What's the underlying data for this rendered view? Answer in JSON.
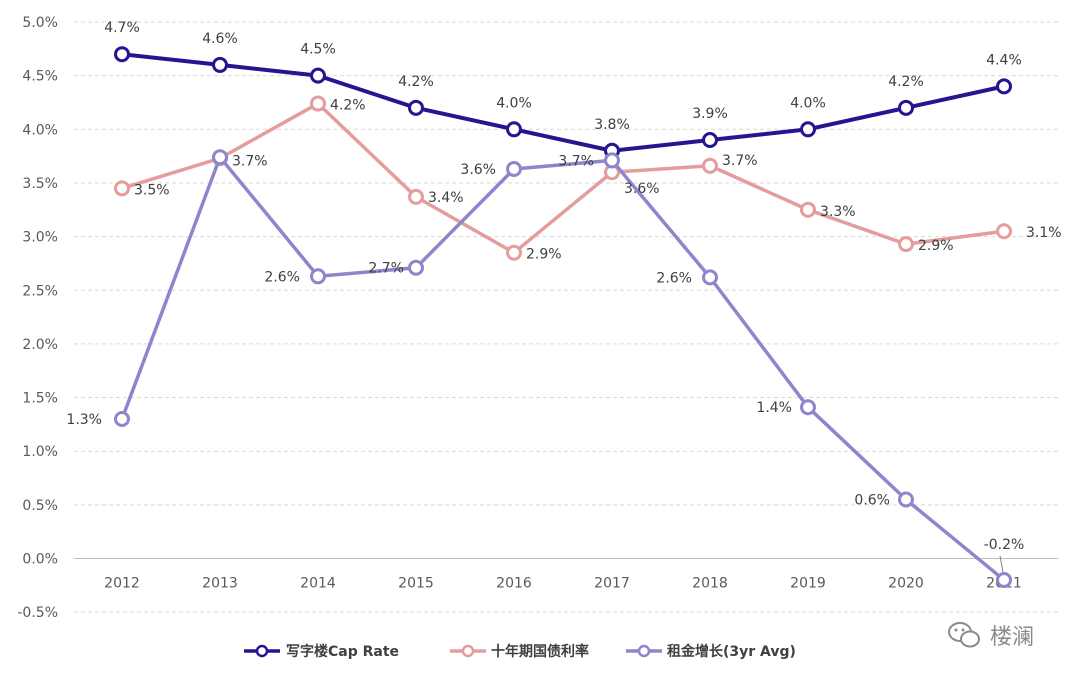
{
  "chart_data": {
    "type": "line",
    "title": "",
    "xlabel": "",
    "ylabel": "",
    "categories": [
      "2012",
      "2013",
      "2014",
      "2015",
      "2016",
      "2017",
      "2018",
      "2019",
      "2020",
      "2021"
    ],
    "ylim": [
      -0.5,
      5.0
    ],
    "y_ticks": [
      "5.0%",
      "4.5%",
      "4.0%",
      "3.5%",
      "3.0%",
      "2.5%",
      "2.0%",
      "1.5%",
      "1.0%",
      "0.5%",
      "0.0%",
      "-0.5%"
    ],
    "y_tick_values": [
      5.0,
      4.5,
      4.0,
      3.5,
      3.0,
      2.5,
      2.0,
      1.5,
      1.0,
      0.5,
      0.0,
      -0.5
    ],
    "grid": true,
    "legend_position": "bottom",
    "series": [
      {
        "name": "写字楼Cap Rate",
        "color": "#24168f",
        "values": [
          4.7,
          4.6,
          4.5,
          4.2,
          4.0,
          3.8,
          3.9,
          4.0,
          4.2,
          4.4
        ],
        "labels": [
          "4.7%",
          "4.6%",
          "4.5%",
          "4.2%",
          "4.0%",
          "3.8%",
          "3.9%",
          "4.0%",
          "4.2%",
          "4.4%"
        ]
      },
      {
        "name": "十年期国债利率",
        "color": "#e49c9c",
        "values": [
          3.45,
          3.73,
          4.24,
          3.37,
          2.85,
          3.6,
          3.66,
          3.25,
          2.93,
          3.05
        ],
        "labels": [
          "3.5%",
          "3.7%",
          "4.2%",
          "3.4%",
          "2.9%",
          "3.6%",
          "3.7%",
          "3.3%",
          "2.9%",
          "3.1%"
        ]
      },
      {
        "name": "租金增长(3yr Avg)",
        "color": "#8e86cc",
        "values": [
          1.3,
          3.74,
          2.63,
          2.71,
          3.63,
          3.71,
          2.62,
          1.41,
          0.55,
          -0.2
        ],
        "labels": [
          "1.3%",
          "3.7%",
          "2.6%",
          "2.7%",
          "3.6%",
          "3.7%",
          "2.6%",
          "1.4%",
          "0.6%",
          "-0.2%"
        ]
      }
    ]
  },
  "watermark": {
    "text": "楼澜",
    "icon": "wechat-icon"
  }
}
